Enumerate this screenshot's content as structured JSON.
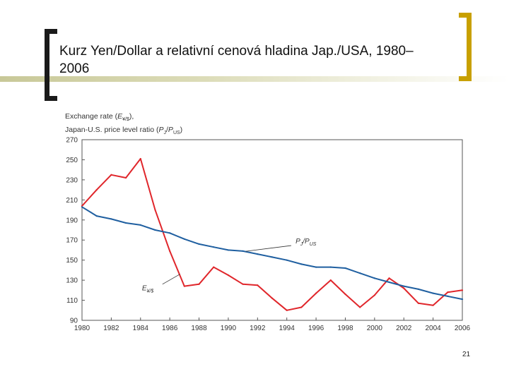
{
  "slide": {
    "title": "Kurz Yen/Dollar a relativní cenová hladina Jap./USA, 1980–2006",
    "page_number": "21"
  },
  "colors": {
    "exchange_rate": "#e0262b",
    "price_ratio": "#1f5fa0",
    "accent_gold": "#c8a000"
  },
  "chart_data": {
    "type": "line",
    "ylabel_line1_prefix": "Exchange rate (",
    "ylabel_line1_var": "E",
    "ylabel_line1_sub": "¥/$",
    "ylabel_line1_suffix": "),",
    "ylabel_line2_prefix": "Japan-U.S. price level ratio (",
    "ylabel_line2_var1": "P",
    "ylabel_line2_sub1": "J",
    "ylabel_line2_sep": "/",
    "ylabel_line2_var2": "P",
    "ylabel_line2_sub2": "US",
    "ylabel_line2_suffix": ")",
    "xlabel": "",
    "xlim": [
      1980,
      2006
    ],
    "ylim": [
      90,
      270
    ],
    "yticks": [
      90,
      110,
      130,
      150,
      170,
      190,
      210,
      230,
      250,
      270
    ],
    "xticks": [
      1980,
      1982,
      1984,
      1986,
      1988,
      1990,
      1992,
      1994,
      1996,
      1998,
      2000,
      2002,
      2004,
      2006
    ],
    "grid": false,
    "series": [
      {
        "name": "E¥/$",
        "label_main": "E",
        "label_sub": "¥/$",
        "color": "#e0262b",
        "x": [
          1980,
          1981,
          1982,
          1983,
          1984,
          1985,
          1986,
          1987,
          1988,
          1989,
          1990,
          1991,
          1992,
          1993,
          1994,
          1995,
          1996,
          1997,
          1998,
          1999,
          2000,
          2001,
          2002,
          2003,
          2004,
          2005,
          2006
        ],
        "values": [
          204,
          220,
          235,
          232,
          251,
          200,
          159,
          124,
          126,
          143,
          135,
          126,
          125,
          112,
          100,
          103,
          117,
          130,
          116,
          103,
          115,
          132,
          122,
          107,
          105,
          118,
          120
        ]
      },
      {
        "name": "PJ/PUS",
        "label_main": "P",
        "label_sub1": "J",
        "label_sep": "/P",
        "label_sub2": "US",
        "color": "#1f5fa0",
        "x": [
          1980,
          1981,
          1982,
          1983,
          1984,
          1985,
          1986,
          1987,
          1988,
          1989,
          1990,
          1991,
          1992,
          1993,
          1994,
          1995,
          1996,
          1997,
          1998,
          1999,
          2000,
          2001,
          2002,
          2003,
          2004,
          2005,
          2006
        ],
        "values": [
          203,
          194,
          191,
          187,
          185,
          180,
          177,
          171,
          166,
          163,
          160,
          159,
          156,
          153,
          150,
          146,
          143,
          143,
          142,
          137,
          132,
          128,
          124,
          121,
          117,
          114,
          111
        ]
      }
    ]
  }
}
